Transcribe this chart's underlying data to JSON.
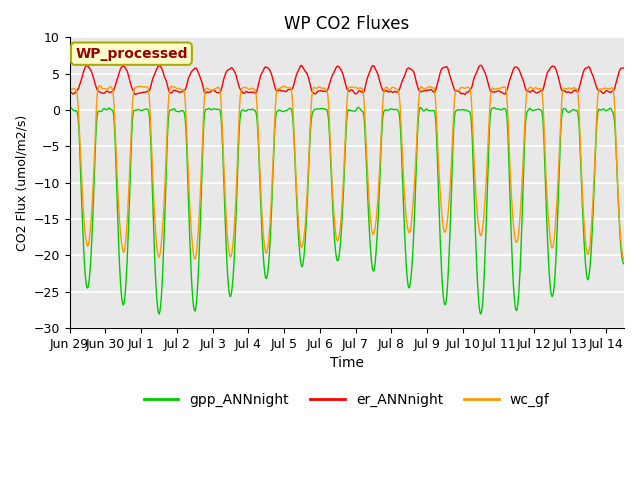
{
  "title": "WP CO2 Fluxes",
  "xlabel": "Time",
  "ylabel_actual": "CO2 Flux (umol/m2/s)",
  "ylim": [
    -30,
    10
  ],
  "xlim_days": [
    0,
    15.5
  ],
  "annotation_text": "WP_processed",
  "annotation_bg": "#ffffcc",
  "annotation_edge": "#aaaa00",
  "annotation_text_color": "#990000",
  "bg_color": "#e8e8e8",
  "line_colors": {
    "gpp": "#00cc00",
    "er": "#ff0000",
    "wc": "#ff9900"
  },
  "legend_labels": [
    "gpp_ANNnight",
    "er_ANNnight",
    "wc_gf"
  ],
  "xtick_labels": [
    "Jun 29",
    "Jun 30",
    "Jul 1",
    "Jul 2",
    "Jul 3",
    "Jul 4",
    "Jul 5",
    "Jul 6",
    "Jul 7",
    "Jul 8",
    "Jul 9",
    "Jul 10",
    "Jul 11",
    "Jul 12",
    "Jul 13",
    "Jul 14"
  ],
  "xtick_positions": [
    0,
    1,
    2,
    3,
    4,
    5,
    6,
    7,
    8,
    9,
    10,
    11,
    12,
    13,
    14,
    15
  ],
  "n_days": 15.5,
  "points_per_day": 48
}
